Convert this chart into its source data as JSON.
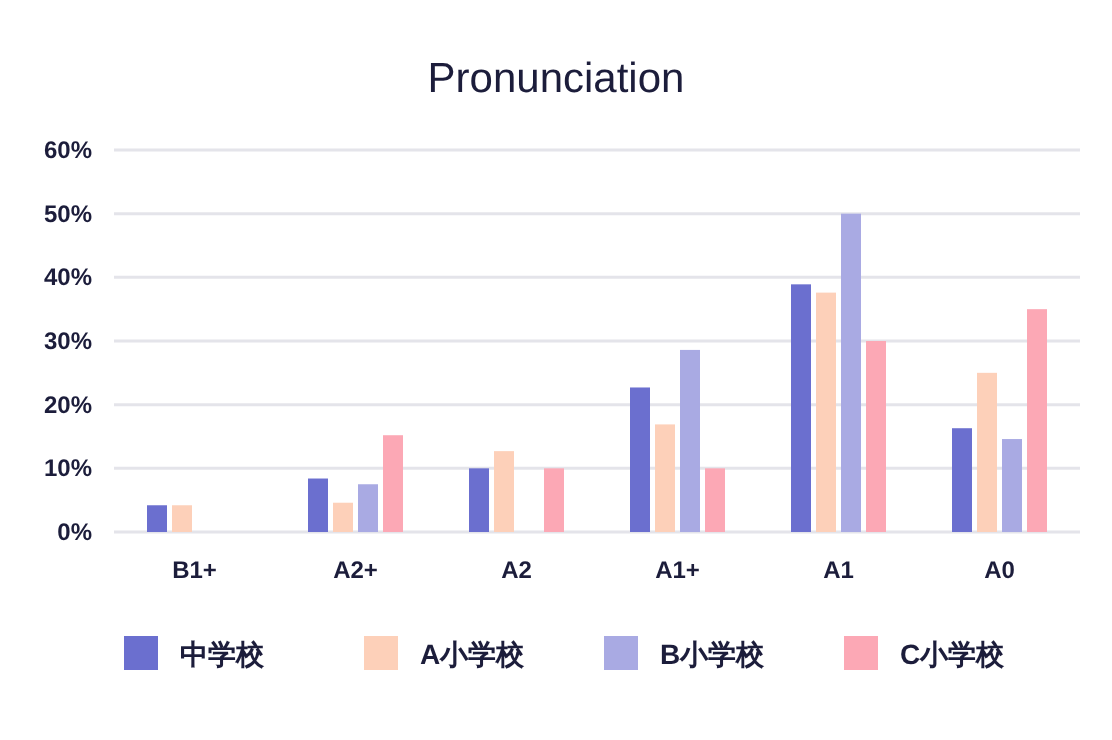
{
  "chart_data": {
    "type": "bar",
    "title": "Pronunciation",
    "categories": [
      "B1+",
      "A2+",
      "A2",
      "A1+",
      "A1",
      "A0"
    ],
    "series": [
      {
        "name": "中学校",
        "color": "#6b6fcf",
        "values": [
          4.2,
          8.4,
          10,
          22.7,
          38.9,
          16.3
        ]
      },
      {
        "name": "A小学校",
        "color": "#fdd0b9",
        "values": [
          4.2,
          4.6,
          12.7,
          16.9,
          37.6,
          25
        ]
      },
      {
        "name": "B小学校",
        "color": "#a9aae3",
        "values": [
          0,
          7.5,
          0,
          28.6,
          50,
          14.6
        ]
      },
      {
        "name": "C小学校",
        "color": "#fca8b5",
        "values": [
          0,
          15.2,
          10,
          10,
          30,
          35
        ]
      }
    ],
    "ylim": [
      0,
      60
    ],
    "yticks": [
      {
        "value": 0,
        "label": "0%"
      },
      {
        "value": 10,
        "label": "10%"
      },
      {
        "value": 20,
        "label": "20%"
      },
      {
        "value": 30,
        "label": "30%"
      },
      {
        "value": 40,
        "label": "40%"
      },
      {
        "value": 50,
        "label": "50%"
      },
      {
        "value": 60,
        "label": "60%"
      }
    ],
    "grid": "y",
    "legend": "bottom"
  }
}
